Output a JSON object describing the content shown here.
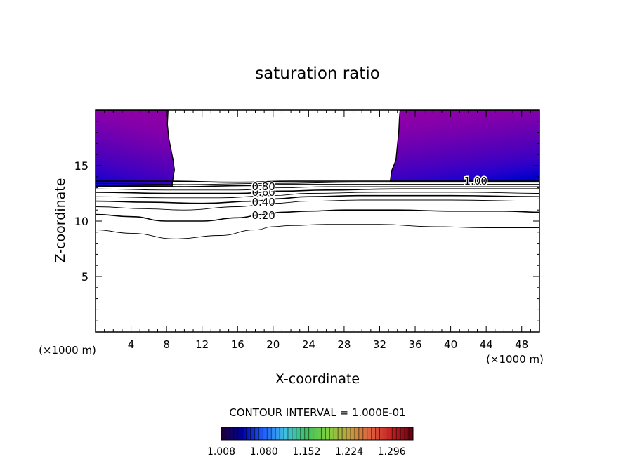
{
  "chart_data": {
    "type": "contour",
    "title": "saturation ratio",
    "xlabel": "X-coordinate",
    "ylabel": "Z-coordinate",
    "x_unit_left": "(×1000 m)",
    "x_unit_right": "(×1000 m)",
    "xlim": [
      0,
      50
    ],
    "ylim": [
      0,
      20
    ],
    "xticks": [
      4,
      8,
      12,
      16,
      20,
      24,
      28,
      32,
      36,
      40,
      44,
      48
    ],
    "yticks": [
      5,
      10,
      15
    ],
    "contour_interval_text": "CONTOUR INTERVAL = 1.000E-01",
    "contour_labels": [
      {
        "text": "0.20",
        "x": 17.6,
        "z": 10.5
      },
      {
        "text": "0.40",
        "x": 17.6,
        "z": 11.7
      },
      {
        "text": "0.60",
        "x": 17.6,
        "z": 12.6
      },
      {
        "text": "0.80",
        "x": 17.6,
        "z": 13.1
      },
      {
        "text": "1.00",
        "x": 41.5,
        "z": 13.6
      }
    ],
    "contour_lines": [
      {
        "level": "0.10",
        "points": [
          [
            0,
            9.2
          ],
          [
            4,
            8.9
          ],
          [
            9,
            8.4
          ],
          [
            14,
            8.7
          ],
          [
            18,
            9.2
          ],
          [
            20,
            9.5
          ],
          [
            22,
            9.6
          ],
          [
            26,
            9.7
          ],
          [
            32,
            9.7
          ],
          [
            38,
            9.5
          ],
          [
            44,
            9.4
          ],
          [
            50,
            9.4
          ]
        ]
      },
      {
        "level": "0.20",
        "points": [
          [
            0,
            10.6
          ],
          [
            4,
            10.4
          ],
          [
            8,
            10.0
          ],
          [
            12,
            10.0
          ],
          [
            16,
            10.3
          ],
          [
            19,
            10.6
          ],
          [
            21,
            10.8
          ],
          [
            24,
            10.9
          ],
          [
            28,
            11.0
          ],
          [
            34,
            11.0
          ],
          [
            40,
            10.9
          ],
          [
            46,
            10.9
          ],
          [
            50,
            10.8
          ]
        ]
      },
      {
        "level": "0.30",
        "points": [
          [
            0,
            11.3
          ],
          [
            6,
            11.1
          ],
          [
            10,
            11.0
          ],
          [
            16,
            11.3
          ],
          [
            20,
            11.6
          ],
          [
            24,
            11.8
          ],
          [
            30,
            11.9
          ],
          [
            40,
            11.9
          ],
          [
            50,
            11.8
          ]
        ]
      },
      {
        "level": "0.40",
        "points": [
          [
            0,
            11.8
          ],
          [
            6,
            11.7
          ],
          [
            12,
            11.6
          ],
          [
            18,
            11.8
          ],
          [
            20,
            12.0
          ],
          [
            24,
            12.2
          ],
          [
            30,
            12.3
          ],
          [
            40,
            12.3
          ],
          [
            50,
            12.2
          ]
        ]
      },
      {
        "level": "0.50",
        "points": [
          [
            0,
            12.2
          ],
          [
            8,
            12.1
          ],
          [
            14,
            12.1
          ],
          [
            20,
            12.3
          ],
          [
            24,
            12.5
          ],
          [
            32,
            12.6
          ],
          [
            42,
            12.6
          ],
          [
            50,
            12.5
          ]
        ]
      },
      {
        "level": "0.60",
        "points": [
          [
            0,
            12.6
          ],
          [
            8,
            12.5
          ],
          [
            16,
            12.5
          ],
          [
            21,
            12.7
          ],
          [
            26,
            12.8
          ],
          [
            34,
            12.9
          ],
          [
            44,
            12.9
          ],
          [
            50,
            12.9
          ]
        ]
      },
      {
        "level": "0.70",
        "points": [
          [
            0,
            12.9
          ],
          [
            8,
            12.8
          ],
          [
            16,
            12.8
          ],
          [
            21,
            13.0
          ],
          [
            26,
            13.1
          ],
          [
            36,
            13.1
          ],
          [
            50,
            13.1
          ]
        ]
      },
      {
        "level": "0.80",
        "points": [
          [
            0,
            13.2
          ],
          [
            10,
            13.1
          ],
          [
            17,
            13.2
          ],
          [
            21,
            13.3
          ],
          [
            28,
            13.3
          ],
          [
            40,
            13.3
          ],
          [
            50,
            13.3
          ]
        ]
      },
      {
        "level": "0.90",
        "points": [
          [
            0,
            13.4
          ],
          [
            10,
            13.3
          ],
          [
            20,
            13.4
          ],
          [
            30,
            13.5
          ],
          [
            40,
            13.5
          ],
          [
            50,
            13.5
          ]
        ]
      },
      {
        "level": "1.00",
        "points": [
          [
            0,
            13.6
          ],
          [
            8,
            13.6
          ],
          [
            16,
            13.5
          ],
          [
            22,
            13.6
          ],
          [
            33,
            13.6
          ],
          [
            42,
            13.6
          ],
          [
            50,
            13.6
          ]
        ]
      }
    ],
    "supersaturated_regions": [
      {
        "side": "left",
        "x_range": [
          0,
          8.8
        ],
        "z_range": [
          13.1,
          20
        ]
      },
      {
        "side": "right",
        "x_range": [
          33.2,
          50
        ],
        "z_range": [
          13.6,
          20
        ]
      }
    ],
    "colorbar": {
      "min": 1.008,
      "max": 1.332,
      "tick_labels": [
        "1.008",
        "1.080",
        "1.152",
        "1.224",
        "1.296"
      ],
      "colors": [
        "#200030",
        "#0000a0",
        "#2060ff",
        "#40c0e0",
        "#40c060",
        "#80d040",
        "#c0a040",
        "#e06040",
        "#c02020",
        "#600010"
      ]
    },
    "fill_colors": [
      "#0000cc",
      "#2200cc",
      "#3a00c4",
      "#4c00bc",
      "#5a00b6",
      "#6a00b2",
      "#7800ae",
      "#8400aa",
      "#8c00a8"
    ]
  }
}
